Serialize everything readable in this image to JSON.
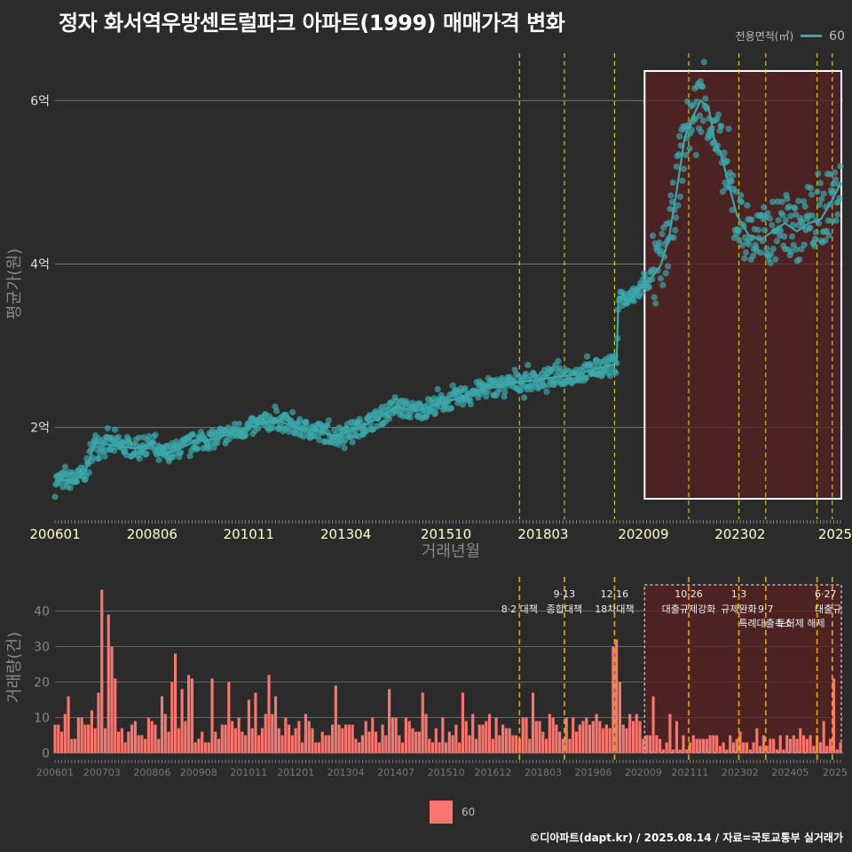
{
  "title": "정자 화서역우방센트럴파크 아파트(1999) 매매가격 변화",
  "caption": "©디아파트(dapt.kr) / 2025.08.14 / 자료=국토교통부 실거래가",
  "colors": {
    "background": "#2b2b2b",
    "price_series": "#3aa7a9",
    "volume_bars": "#f8766d",
    "policy_lines": "#e6e600",
    "policy_lines_bottom": "#e6a800",
    "highlight_fill": "#5a2020"
  },
  "legend_top": {
    "title": "전용면적(㎡)",
    "label": "60"
  },
  "legend_bottom": {
    "label": "60"
  },
  "chart_data": [
    {
      "type": "scatter",
      "ylabel": "평균가(원)",
      "xlabel": "거래년월",
      "x_ticks": [
        "200601",
        "200806",
        "201011",
        "201304",
        "201510",
        "201803",
        "202009",
        "202302",
        "2025"
      ],
      "y_ticks": [
        "2억",
        "4억",
        "6억"
      ],
      "y_tick_values": [
        2.0,
        4.0,
        6.0
      ],
      "ylim": [
        0.9,
        6.6
      ],
      "xlim": [
        2006.0,
        2025.65
      ],
      "policy_lines_x": [
        2017.58,
        2018.7,
        2019.95,
        2021.8,
        2023.05,
        2023.72,
        2025.0,
        2025.38
      ],
      "highlight_range": [
        2020.7,
        2025.65
      ],
      "trend": [
        [
          2006.0,
          1.35
        ],
        [
          2006.5,
          1.36
        ],
        [
          2006.75,
          1.45
        ],
        [
          2007.0,
          1.82
        ],
        [
          2007.5,
          1.78
        ],
        [
          2008.0,
          1.74
        ],
        [
          2008.4,
          1.8
        ],
        [
          2008.6,
          1.66
        ],
        [
          2009.0,
          1.72
        ],
        [
          2009.5,
          1.83
        ],
        [
          2010.0,
          1.86
        ],
        [
          2010.5,
          1.95
        ],
        [
          2011.0,
          2.02
        ],
        [
          2011.5,
          2.1
        ],
        [
          2012.0,
          2.0
        ],
        [
          2012.5,
          1.96
        ],
        [
          2013.0,
          1.9
        ],
        [
          2013.5,
          1.98
        ],
        [
          2014.0,
          2.1
        ],
        [
          2014.5,
          2.25
        ],
        [
          2015.0,
          2.2
        ],
        [
          2015.5,
          2.28
        ],
        [
          2016.0,
          2.35
        ],
        [
          2016.5,
          2.45
        ],
        [
          2017.0,
          2.5
        ],
        [
          2017.5,
          2.55
        ],
        [
          2018.0,
          2.58
        ],
        [
          2018.5,
          2.62
        ],
        [
          2019.0,
          2.65
        ],
        [
          2019.5,
          2.72
        ],
        [
          2020.0,
          2.78
        ],
        [
          2020.05,
          3.6
        ],
        [
          2020.3,
          3.55
        ],
        [
          2020.5,
          3.65
        ],
        [
          2020.7,
          3.75
        ],
        [
          2020.9,
          3.85
        ],
        [
          2021.1,
          3.98
        ],
        [
          2021.3,
          4.3
        ],
        [
          2021.5,
          4.9
        ],
        [
          2021.7,
          5.55
        ],
        [
          2021.9,
          5.8
        ],
        [
          2022.1,
          6.0
        ],
        [
          2022.3,
          5.9
        ],
        [
          2022.45,
          5.5
        ],
        [
          2022.6,
          5.35
        ],
        [
          2023.0,
          4.6
        ],
        [
          2023.3,
          4.35
        ],
        [
          2023.6,
          4.3
        ],
        [
          2023.9,
          4.4
        ],
        [
          2024.2,
          4.5
        ],
        [
          2024.5,
          4.4
        ],
        [
          2024.8,
          4.5
        ],
        [
          2025.1,
          4.55
        ],
        [
          2025.4,
          4.8
        ],
        [
          2025.6,
          5.0
        ]
      ],
      "series": [
        {
          "name": "60"
        }
      ]
    },
    {
      "type": "bar",
      "ylabel": "거래량(건)",
      "x_ticks": [
        "200601",
        "200703",
        "200806",
        "200908",
        "201011",
        "201201",
        "201304",
        "201407",
        "201510",
        "201612",
        "201803",
        "201906",
        "202009",
        "202111",
        "202302",
        "202405",
        "2025"
      ],
      "y_ticks": [
        "0",
        "10",
        "20",
        "30",
        "40"
      ],
      "y_tick_values": [
        0,
        10,
        20,
        30,
        40
      ],
      "ylim": [
        0,
        48
      ],
      "peaks": [
        [
          2006.1,
          8
        ],
        [
          2006.3,
          16
        ],
        [
          2006.6,
          10
        ],
        [
          2006.9,
          12
        ],
        [
          2007.1,
          17
        ],
        [
          2007.2,
          46
        ],
        [
          2007.3,
          39
        ],
        [
          2007.4,
          30
        ],
        [
          2007.5,
          21
        ],
        [
          2007.8,
          6
        ],
        [
          2008.1,
          5
        ],
        [
          2008.5,
          8
        ],
        [
          2008.7,
          16
        ],
        [
          2008.9,
          20
        ],
        [
          2009.0,
          28
        ],
        [
          2009.2,
          18
        ],
        [
          2009.3,
          22
        ],
        [
          2009.4,
          21
        ],
        [
          2009.9,
          21
        ],
        [
          2010.3,
          20
        ],
        [
          2010.8,
          15
        ],
        [
          2011.0,
          17
        ],
        [
          2011.3,
          22
        ],
        [
          2011.5,
          16
        ],
        [
          2013.0,
          19
        ],
        [
          2014.3,
          18
        ],
        [
          2015.2,
          17
        ],
        [
          2016.2,
          17
        ],
        [
          2017.0,
          10
        ],
        [
          2017.9,
          17
        ],
        [
          2018.3,
          11
        ],
        [
          2019.3,
          8
        ],
        [
          2019.95,
          30
        ],
        [
          2020.0,
          32
        ],
        [
          2020.05,
          20
        ],
        [
          2020.5,
          11
        ],
        [
          2020.9,
          16
        ],
        [
          2021.3,
          11
        ],
        [
          2021.5,
          9
        ],
        [
          2022.8,
          5
        ],
        [
          2023.1,
          6
        ],
        [
          2023.5,
          7
        ],
        [
          2024.6,
          7
        ],
        [
          2025.2,
          9
        ],
        [
          2025.45,
          21
        ]
      ],
      "annotations": [
        {
          "x": 2017.58,
          "label": "8·2 대책",
          "row": 2
        },
        {
          "x": 2018.7,
          "label": "9·13",
          "row": 1
        },
        {
          "x": 2018.7,
          "label": "종합대책",
          "row": 2
        },
        {
          "x": 2019.95,
          "label": "12·16",
          "row": 1
        },
        {
          "x": 2019.95,
          "label": "18차대책",
          "row": 2
        },
        {
          "x": 2021.8,
          "label": "10·26",
          "row": 1
        },
        {
          "x": 2021.8,
          "label": "대출규제강화",
          "row": 2
        },
        {
          "x": 2023.05,
          "label": "1·3",
          "row": 1
        },
        {
          "x": 2023.05,
          "label": "규제완화",
          "row": 2
        },
        {
          "x": 2023.72,
          "label": "9·7",
          "row": 2
        },
        {
          "x": 2023.72,
          "label": "특례대출축소",
          "row": 3
        },
        {
          "x": 2024.6,
          "label": "토허제 해제",
          "row": 3
        },
        {
          "x": 2025.38,
          "label": "6·27",
          "row": 1
        },
        {
          "x": 2025.38,
          "label": "대출규",
          "row": 2
        }
      ]
    }
  ]
}
